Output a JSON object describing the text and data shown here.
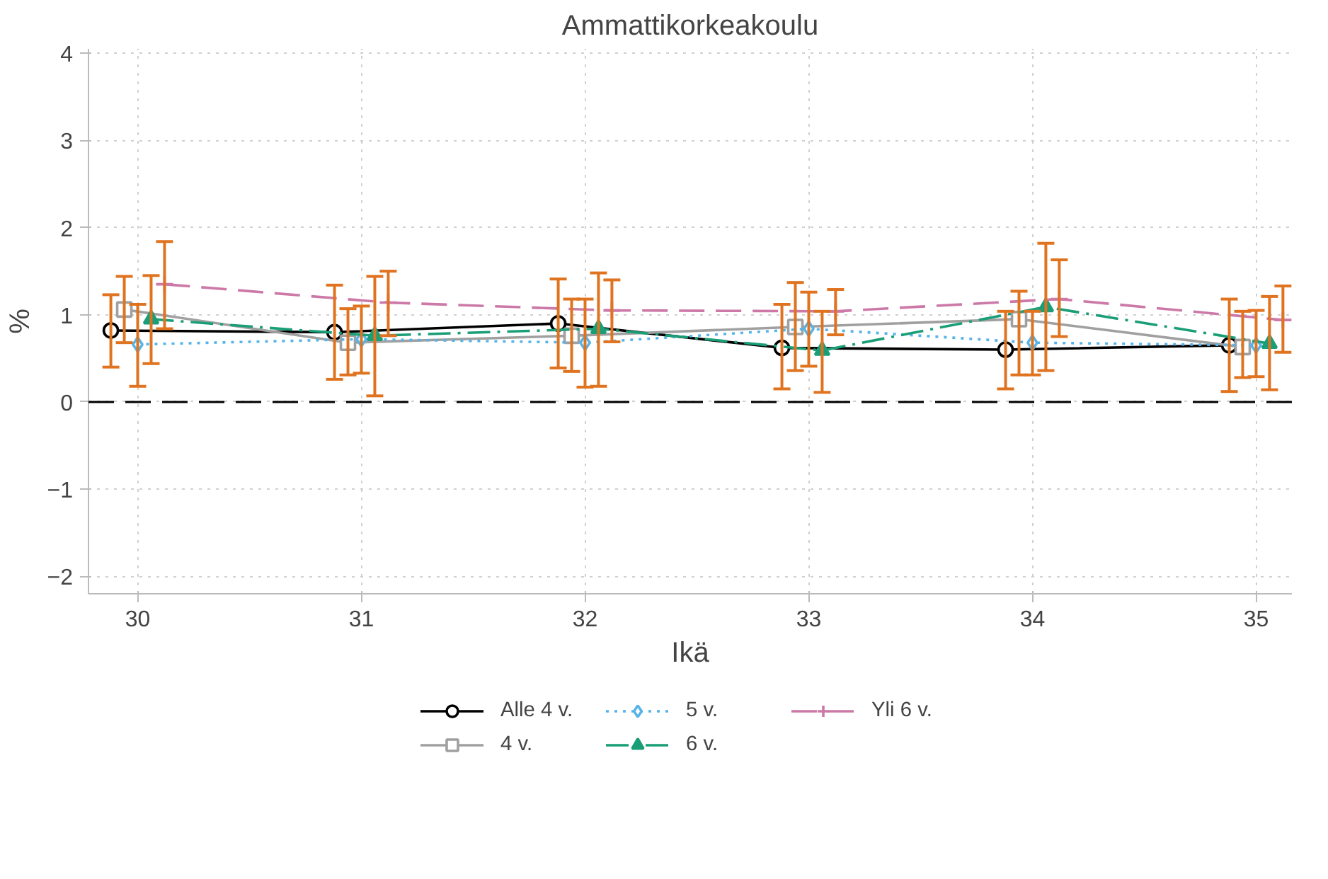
{
  "chart_data": {
    "type": "line",
    "title": "Ammattikorkeakoulu",
    "xlabel": "Ikä",
    "ylabel": "%",
    "xlim": [
      29.78,
      35.16
    ],
    "ylim": [
      -2.2,
      4.05
    ],
    "xticks": [
      30,
      31,
      32,
      33,
      34,
      35
    ],
    "yticks": [
      -2,
      -1,
      0,
      1,
      2,
      3,
      4
    ],
    "grid": true,
    "legend": "bottom",
    "ref_lines": [
      {
        "axis": "y",
        "value": 0,
        "color": "#000000",
        "line_style": "dashed"
      }
    ],
    "series": [
      {
        "name": "Alle 4 v.",
        "color": "#000000",
        "marker": "circle",
        "line_style": "solid",
        "x": [
          29.88,
          30.88,
          31.88,
          32.88,
          33.88,
          34.88
        ],
        "values": [
          0.82,
          0.8,
          0.9,
          0.62,
          0.6,
          0.65
        ],
        "errors": [
          [
            0.4,
            1.23
          ],
          [
            0.26,
            1.34
          ],
          [
            0.39,
            1.41
          ],
          [
            0.15,
            1.12
          ],
          [
            0.15,
            1.04
          ],
          [
            0.12,
            1.18
          ]
        ]
      },
      {
        "name": "4 v.",
        "color": "#a0a0a0",
        "marker": "square",
        "line_style": "solid",
        "x": [
          29.94,
          30.94,
          31.94,
          32.94,
          33.94,
          34.94
        ],
        "values": [
          1.06,
          0.68,
          0.76,
          0.86,
          0.95,
          0.63
        ],
        "errors": [
          [
            0.68,
            1.44
          ],
          [
            0.31,
            1.07
          ],
          [
            0.35,
            1.18
          ],
          [
            0.36,
            1.37
          ],
          [
            0.31,
            1.27
          ],
          [
            0.28,
            1.04
          ]
        ]
      },
      {
        "name": "5 v.",
        "color": "#56b4e9",
        "marker": "diamond",
        "line_style": "dotted",
        "x": [
          30,
          31,
          32,
          33,
          34,
          35
        ],
        "values": [
          0.66,
          0.72,
          0.68,
          0.84,
          0.68,
          0.65
        ],
        "errors": [
          [
            0.18,
            1.12
          ],
          [
            0.33,
            1.1
          ],
          [
            0.17,
            1.18
          ],
          [
            0.41,
            1.26
          ],
          [
            0.31,
            1.04
          ],
          [
            0.29,
            1.05
          ]
        ]
      },
      {
        "name": "6 v.",
        "color": "#1a9e77",
        "marker": "triangle",
        "line_style": "dashdot",
        "x": [
          30.06,
          31.06,
          32.06,
          33.06,
          34.06,
          35.06
        ],
        "values": [
          0.95,
          0.76,
          0.84,
          0.59,
          1.09,
          0.67
        ],
        "errors": [
          [
            0.44,
            1.45
          ],
          [
            0.07,
            1.44
          ],
          [
            0.18,
            1.48
          ],
          [
            0.11,
            1.04
          ],
          [
            0.36,
            1.82
          ],
          [
            0.14,
            1.21
          ]
        ]
      },
      {
        "name": "Yli 6 v.",
        "color": "#cc79a7",
        "marker": "cross",
        "line_style": "dashed",
        "x": [
          30.12,
          31.12,
          32.12,
          33.12,
          34.12,
          35.12
        ],
        "values": [
          1.35,
          1.14,
          1.05,
          1.04,
          1.18,
          0.94
        ],
        "errors": [
          [
            0.84,
            1.84
          ],
          [
            0.76,
            1.5
          ],
          [
            0.69,
            1.4
          ],
          [
            0.77,
            1.29
          ],
          [
            0.75,
            1.63
          ],
          [
            0.57,
            1.33
          ]
        ]
      }
    ]
  }
}
